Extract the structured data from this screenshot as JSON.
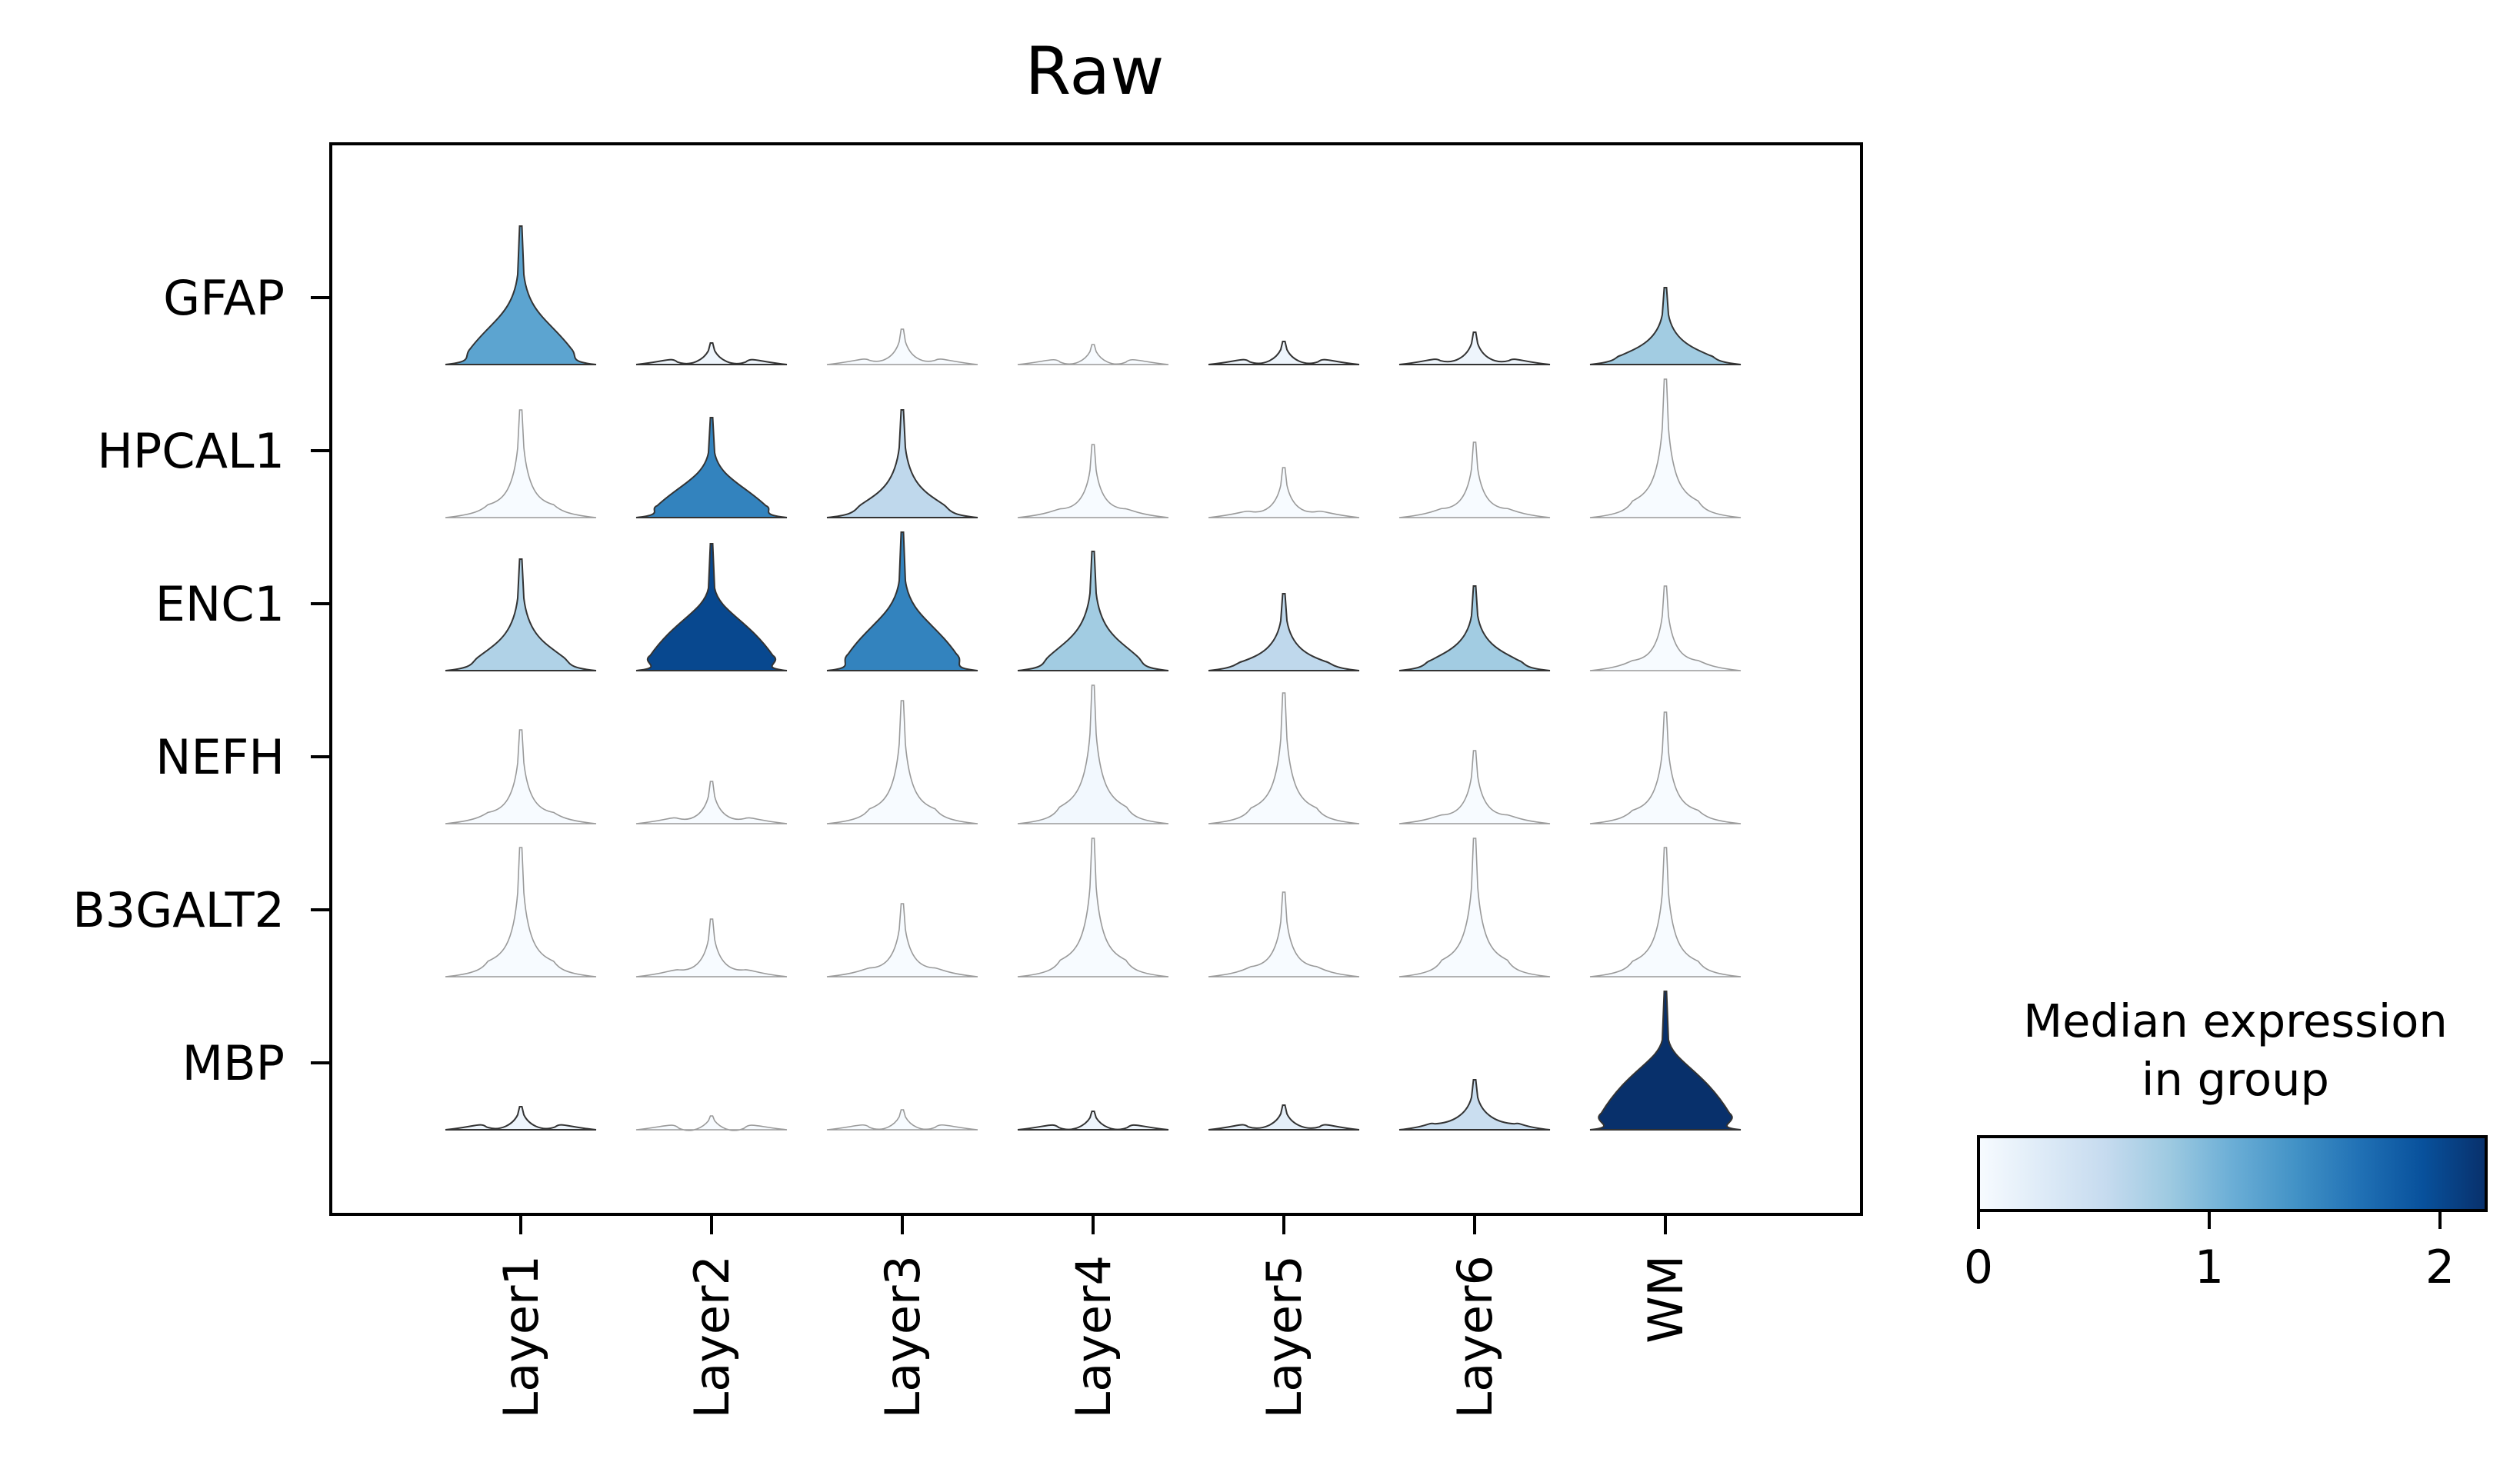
{
  "chart_data": {
    "type": "stacked-violin",
    "title": "Raw",
    "categories": [
      "Layer1",
      "Layer2",
      "Layer3",
      "Layer4",
      "Layer5",
      "Layer6",
      "WM"
    ],
    "genes": [
      "GFAP",
      "HPCAL1",
      "ENC1",
      "NEFH",
      "B3GALT2",
      "MBP"
    ],
    "median_expression": [
      [
        1.2,
        0.1,
        0.0,
        0.0,
        0.1,
        0.1,
        0.8
      ],
      [
        0.0,
        1.5,
        0.6,
        0.0,
        0.0,
        0.0,
        0.0
      ],
      [
        0.7,
        2.0,
        1.5,
        0.8,
        0.6,
        0.8,
        0.0
      ],
      [
        0.0,
        0.0,
        0.0,
        0.05,
        0.0,
        0.0,
        0.0
      ],
      [
        0.0,
        0.0,
        0.0,
        0.0,
        0.0,
        0.0,
        0.0
      ],
      [
        0.1,
        0.0,
        0.0,
        0.1,
        0.2,
        0.5,
        2.2
      ]
    ],
    "colorbar": {
      "title_line1": "Median expression",
      "title_line2": "in group",
      "min": 0,
      "max": 2.2,
      "ticks": [
        "0",
        "1",
        "2"
      ],
      "colormap": "Blues",
      "stops": [
        "#f7fbff",
        "#deebf7",
        "#c6dbef",
        "#9ecae1",
        "#6baed6",
        "#4292c6",
        "#2171b5",
        "#08519c",
        "#08306b"
      ]
    }
  }
}
